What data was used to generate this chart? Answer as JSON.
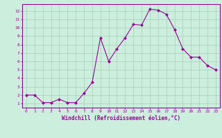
{
  "x": [
    0,
    1,
    2,
    3,
    4,
    5,
    6,
    7,
    8,
    9,
    10,
    11,
    12,
    13,
    14,
    15,
    16,
    17,
    18,
    19,
    20,
    21,
    22,
    23
  ],
  "y": [
    2.0,
    2.0,
    1.1,
    1.1,
    1.5,
    1.1,
    1.1,
    2.2,
    3.5,
    8.8,
    6.0,
    7.5,
    8.8,
    10.4,
    10.3,
    12.2,
    12.1,
    11.6,
    9.8,
    7.5,
    6.5,
    6.5,
    5.5,
    5.0
  ],
  "line_color": "#990099",
  "marker": "D",
  "marker_size": 2,
  "bg_color": "#cceedd",
  "grid_color": "#aaccbb",
  "xlabel": "Windchill (Refroidissement éolien,°C)",
  "xlabel_color": "#990099",
  "tick_color": "#990099",
  "ylabel_ticks": [
    1,
    2,
    3,
    4,
    5,
    6,
    7,
    8,
    9,
    10,
    11,
    12
  ],
  "xlim": [
    -0.5,
    23.5
  ],
  "ylim": [
    0.5,
    12.8
  ]
}
